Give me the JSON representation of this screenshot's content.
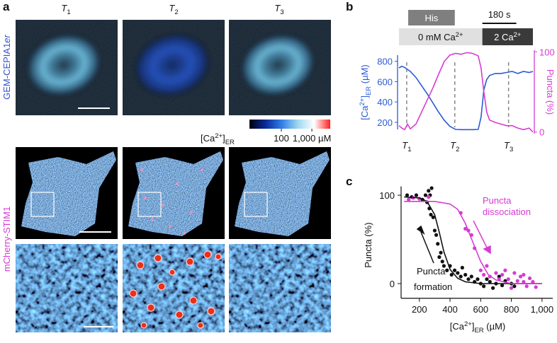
{
  "panel_labels": [
    "a",
    "b",
    "c"
  ],
  "panel_a": {
    "column_titles": [
      [
        {
          "text": "T",
          "style": "italic"
        },
        {
          "text": "1",
          "style": "sub"
        }
      ],
      [
        {
          "text": "T",
          "style": "italic"
        },
        {
          "text": "2",
          "style": "sub"
        }
      ],
      [
        {
          "text": "T",
          "style": "italic"
        },
        {
          "text": "3",
          "style": "sub"
        }
      ]
    ],
    "row_labels": [
      [
        {
          "text": "GEM-CEPIA1"
        },
        {
          "text": "er",
          "style": "italic"
        }
      ],
      [
        {
          "text": "mCherry-STIM1"
        }
      ]
    ],
    "colorbar": {
      "label": [
        {
          "text": "[Ca"
        },
        {
          "text": "2+",
          "style": "sup"
        },
        {
          "text": "]"
        },
        {
          "text": "ER",
          "style": "sub"
        }
      ],
      "log": true,
      "clim": [
        9,
        4000
      ],
      "ticks": [
        {
          "value": 100,
          "label": "100"
        },
        {
          "value": 1000,
          "label": "1,000 µM"
        }
      ],
      "colors": [
        "#000010",
        "#0a2a9a",
        "#2f7fe8",
        "#9fd8f0",
        "#ffffff",
        "#ff2020"
      ]
    }
  },
  "chart_data": [
    {
      "type": "line",
      "x": [
        0,
        15,
        30,
        45,
        60,
        90,
        120,
        150,
        180,
        210,
        240,
        270,
        300,
        330,
        360,
        390,
        420,
        435,
        450,
        465,
        480,
        510,
        540,
        570,
        600,
        630,
        660,
        690,
        710
      ],
      "xlim": [
        0,
        710
      ],
      "ylabel": [
        {
          "text": "[Ca"
        },
        {
          "text": "2+",
          "style": "sup"
        },
        {
          "text": "]"
        },
        {
          "text": "ER",
          "style": "sub"
        },
        {
          "text": " (µM)"
        }
      ],
      "y2label": [
        {
          "text": "Puncta (%)"
        }
      ],
      "ylim": [
        130,
        860
      ],
      "yticks": [
        200,
        400,
        600,
        800
      ],
      "y2lim": [
        -2,
        102
      ],
      "y2ticks": [
        0,
        100
      ],
      "series": [
        {
          "color": "#2a5bd7",
          "values": [
            735,
            750,
            740,
            720,
            700,
            640,
            560,
            480,
            390,
            300,
            220,
            160,
            130,
            128,
            128,
            128,
            130,
            250,
            520,
            620,
            660,
            680,
            680,
            690,
            700,
            680,
            700,
            690,
            700
          ]
        },
        {
          "color": "#d63bd3",
          "axis": "y2",
          "values": [
            8,
            5,
            3,
            10,
            4,
            10,
            25,
            40,
            55,
            72,
            88,
            96,
            98,
            97,
            99,
            98,
            95,
            80,
            50,
            25,
            15,
            12,
            10,
            8,
            8,
            5,
            3,
            5,
            0
          ]
        }
      ],
      "markers": [
        {
          "x": 41,
          "label": [
            {
              "text": "T",
              "style": "italic"
            },
            {
              "text": "1",
              "style": "sub"
            }
          ]
        },
        {
          "x": 296,
          "label": [
            {
              "text": "T",
              "style": "italic"
            },
            {
              "text": "2",
              "style": "sub"
            }
          ]
        },
        {
          "x": 581,
          "label": [
            {
              "text": "T",
              "style": "italic"
            },
            {
              "text": "3",
              "style": "sub"
            }
          ]
        }
      ],
      "treatment_bars": [
        {
          "label": [
            {
              "text": "His"
            }
          ],
          "start": 49,
          "end": 296,
          "color": "#7f7f7f"
        }
      ],
      "solution_bars": [
        {
          "label": [
            {
              "text": "0 mM Ca"
            },
            {
              "text": "2+",
              "style": "sup"
            }
          ],
          "start": 0,
          "end": 442,
          "color": "#e0e0e0"
        },
        {
          "label": [
            {
              "text": "2 Ca"
            },
            {
              "text": "2+",
              "style": "sup"
            }
          ],
          "start": 442,
          "end": 710,
          "color": "#3a3a3a"
        }
      ],
      "scale_bar": {
        "value": 180,
        "label": "180 s"
      }
    },
    {
      "type": "scatter",
      "xlabel": [
        {
          "text": "[Ca"
        },
        {
          "text": "2+",
          "style": "sup"
        },
        {
          "text": "]"
        },
        {
          "text": "ER",
          "style": "sub"
        },
        {
          "text": " (µM)"
        }
      ],
      "ylabel": [
        {
          "text": "Puncta (%)"
        }
      ],
      "xlim": [
        90,
        1070
      ],
      "xticks": [
        200,
        400,
        600,
        800,
        {
          "value": 1000,
          "label": "1,000"
        }
      ],
      "ylim": [
        -15,
        110
      ],
      "yticks": [
        0,
        100
      ],
      "series": [
        {
          "type": "scatter",
          "color": "#111111",
          "x": [
            120,
            150,
            180,
            200,
            220,
            240,
            250,
            260,
            265,
            270,
            280,
            275,
            290,
            300,
            310,
            320,
            330,
            340,
            350,
            360,
            380,
            400,
            410,
            430,
            450,
            470,
            480,
            500,
            520,
            540,
            560,
            580,
            600,
            620,
            640,
            660,
            680,
            700,
            720,
            740,
            760,
            800,
            820
          ],
          "values": [
            100,
            98,
            100,
            96,
            95,
            100,
            92,
            105,
            85,
            100,
            108,
            78,
            75,
            60,
            55,
            45,
            30,
            35,
            25,
            20,
            15,
            20,
            10,
            15,
            12,
            8,
            18,
            10,
            5,
            8,
            2,
            5,
            0,
            -3,
            5,
            2,
            -5,
            0,
            8,
            -2,
            3,
            0,
            -3
          ]
        },
        {
          "type": "scatter",
          "color": "#d63bd3",
          "x": [
            130,
            160,
            200,
            260,
            470,
            500,
            520,
            540,
            560,
            600,
            620,
            640,
            660,
            700,
            720,
            740,
            760,
            780,
            800,
            820,
            840,
            860,
            880,
            900,
            920,
            940,
            960,
            880
          ],
          "values": [
            95,
            97,
            96,
            98,
            80,
            62,
            60,
            55,
            40,
            15,
            10,
            20,
            8,
            12,
            5,
            10,
            15,
            5,
            -5,
            12,
            3,
            8,
            2,
            -3,
            6,
            2,
            -4,
            10
          ]
        },
        {
          "type": "line",
          "color": "#111111",
          "x": [
            100,
            200,
            250,
            300,
            330,
            360,
            400,
            450,
            500,
            600,
            700,
            1000
          ],
          "values": [
            98,
            97,
            93,
            78,
            58,
            36,
            16,
            6,
            2,
            0,
            0,
            0
          ]
        },
        {
          "type": "line",
          "color": "#d63bd3",
          "x": [
            100,
            300,
            400,
            450,
            500,
            530,
            560,
            600,
            650,
            700,
            800,
            1000
          ],
          "values": [
            93,
            93,
            90,
            84,
            68,
            55,
            42,
            25,
            10,
            4,
            0,
            0
          ]
        }
      ],
      "annotations": [
        {
          "lines": [
            "Puncta",
            "dissociation"
          ],
          "color": "#d63bd3"
        },
        {
          "lines": [
            "Puncta",
            "formation"
          ],
          "color": "#111111"
        }
      ]
    }
  ]
}
